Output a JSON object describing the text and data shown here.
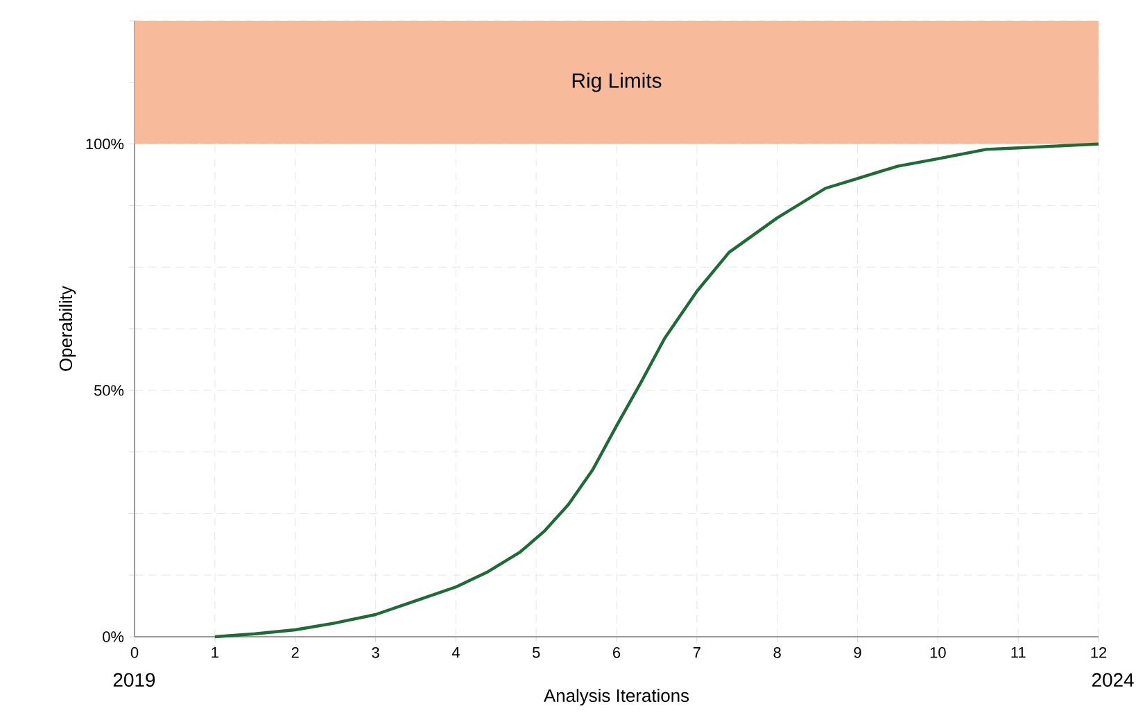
{
  "chart_data": {
    "type": "line",
    "xlabel": "Analysis Iterations",
    "ylabel": "Operability",
    "x": [
      1,
      1.5,
      2,
      2.5,
      3,
      3.5,
      4,
      4.4,
      4.8,
      5.1,
      5.4,
      5.7,
      6,
      6.3,
      6.6,
      7,
      7.4,
      8,
      8.6,
      9,
      9.5,
      10,
      10.6,
      11,
      12
    ],
    "series": [
      {
        "color": "#1e6b35",
        "values": [
          0,
          0.6,
          1.4,
          2.8,
          4.5,
          7.3,
          10.1,
          13.2,
          17.2,
          21.4,
          26.8,
          33.8,
          42.8,
          51.5,
          60.6,
          70.1,
          78,
          85,
          91,
          93,
          95.5,
          97,
          98.9,
          99.2,
          100
        ]
      }
    ],
    "xlim": [
      0,
      12
    ],
    "xticks": [
      0,
      1,
      2,
      3,
      4,
      5,
      6,
      7,
      8,
      9,
      10,
      11,
      12
    ],
    "ylim": [
      0,
      125
    ],
    "yticks": [
      {
        "value": 0,
        "label": "0%"
      },
      {
        "value": 12.5,
        "label": null
      },
      {
        "value": 25,
        "label": null
      },
      {
        "value": 37.5,
        "label": null
      },
      {
        "value": 50,
        "label": "50%"
      },
      {
        "value": 62.5,
        "label": null
      },
      {
        "value": 75,
        "label": null
      },
      {
        "value": 87.5,
        "label": null
      },
      {
        "value": 100,
        "label": "100%"
      },
      {
        "value": 112.5,
        "label": null
      },
      {
        "value": 125,
        "label": null
      }
    ],
    "bands": [
      {
        "axis": "y",
        "from": 100,
        "to": 125,
        "label": "Rig Limits",
        "color": "#f7bb9c"
      }
    ],
    "annotations": [
      "2019",
      "2024"
    ],
    "grid": true,
    "marker": "none",
    "line_style": "solid"
  }
}
